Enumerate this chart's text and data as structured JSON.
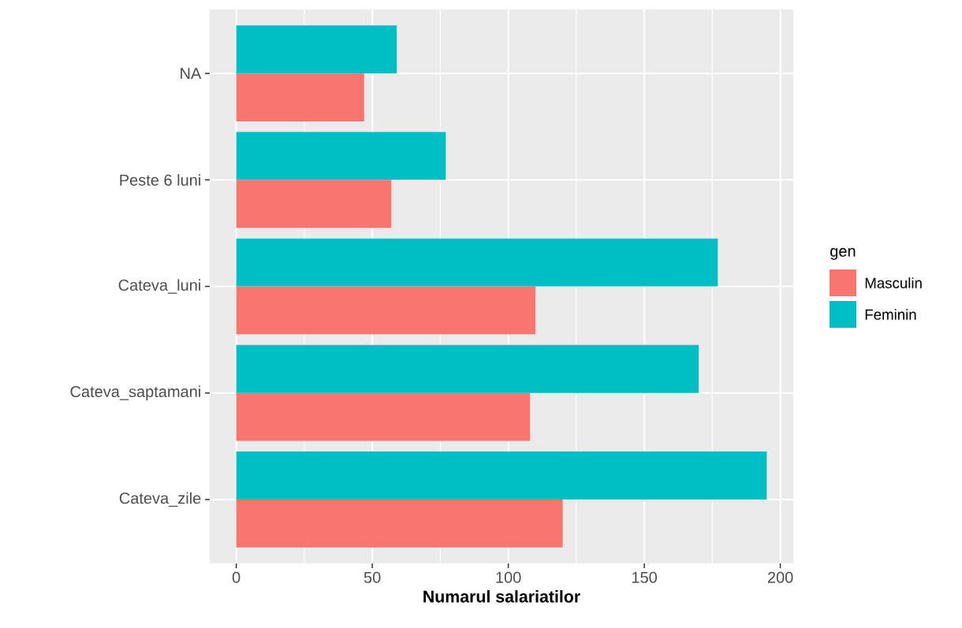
{
  "chart_data": {
    "type": "bar",
    "orientation": "horizontal",
    "xlabel": "Numarul salariatilor",
    "legend_title": "gen",
    "categories": [
      "NA",
      "Peste 6 luni",
      "Cateva_luni",
      "Cateva_saptamani",
      "Cateva_zile"
    ],
    "series": [
      {
        "name": "Masculin",
        "color": "#f8766d",
        "values": [
          47,
          57,
          110,
          108,
          120
        ]
      },
      {
        "name": "Feminin",
        "color": "#00bfc4",
        "values": [
          59,
          77,
          177,
          170,
          195
        ]
      }
    ],
    "xlim": [
      -9.75,
      204.75
    ],
    "xticks": [
      0,
      50,
      100,
      150,
      200
    ],
    "grid": true,
    "legend": "right"
  }
}
